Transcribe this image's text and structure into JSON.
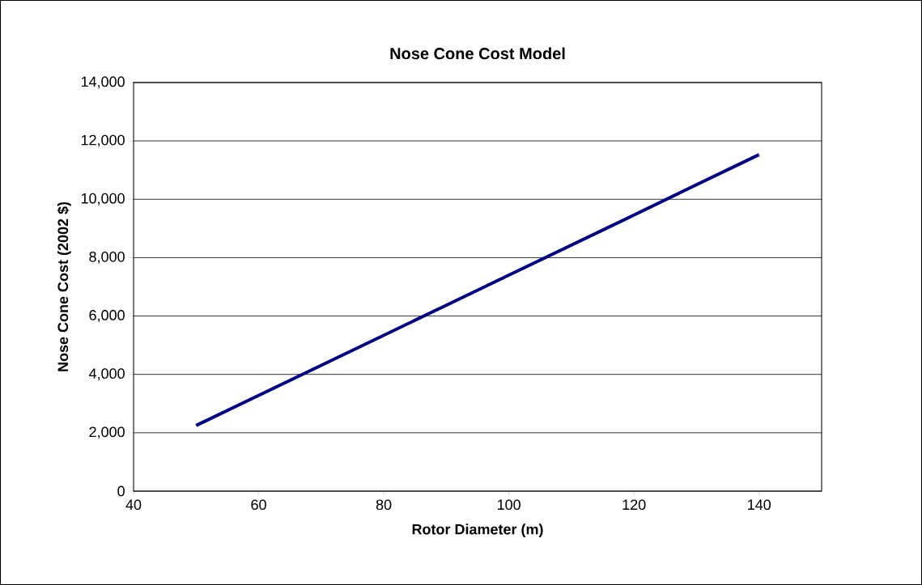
{
  "chart_data": {
    "type": "line",
    "title": "Nose Cone Cost Model",
    "xlabel": "Rotor Diameter (m)",
    "ylabel": "Nose Cone Cost (2002 $)",
    "x": [
      50,
      60,
      70,
      80,
      90,
      100,
      110,
      120,
      130,
      140
    ],
    "series": [
      {
        "color": "#000080",
        "values": [
          2250,
          3280,
          4310,
          5340,
          6370,
          7400,
          8430,
          9460,
          10500,
          11530
        ]
      }
    ],
    "xlim": [
      40,
      150
    ],
    "ylim": [
      0,
      14000
    ],
    "xticks": [
      40,
      60,
      80,
      100,
      120,
      140
    ],
    "yticks": [
      0,
      {
        "value": 2000,
        "label": "2,000"
      },
      {
        "value": 4000,
        "label": "4,000"
      },
      {
        "value": 6000,
        "label": "6,000"
      },
      {
        "value": 8000,
        "label": "8,000"
      },
      {
        "value": 10000,
        "label": "10,000"
      },
      {
        "value": 12000,
        "label": "12,000"
      },
      {
        "value": 14000,
        "label": "14,000"
      }
    ],
    "grid": "y"
  }
}
